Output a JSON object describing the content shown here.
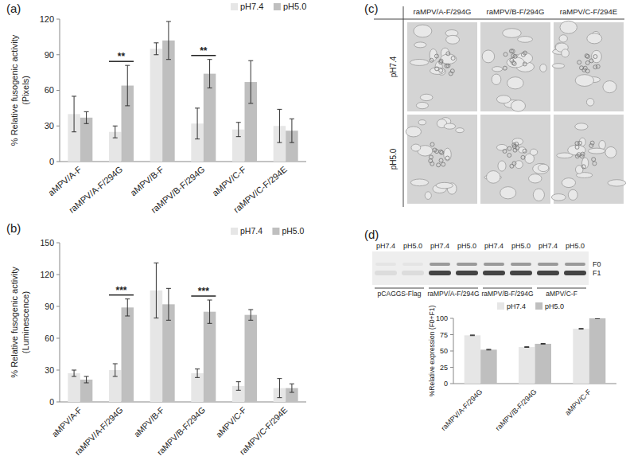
{
  "chart_data": [
    {
      "type": "bar",
      "title": "(a)",
      "ylabel": [
        "% Relative fusogenic activity",
        "(Pixels)"
      ],
      "categories": [
        "aMPV/A-F",
        "raMPV/A-F/294G",
        "aMPV/B-F",
        "raMPV/B-F/294G",
        "aMPV/C-F",
        "raMPV/C-F/294E"
      ],
      "series": [
        {
          "name": "pH7.4",
          "color": "#e6e6e6",
          "values": [
            40,
            25,
            95,
            32,
            27,
            30
          ],
          "error": [
            15,
            5,
            5,
            13,
            6,
            14
          ]
        },
        {
          "name": "pH5.0",
          "color": "#bfbfbf",
          "values": [
            37,
            64,
            102,
            74,
            67,
            26
          ],
          "error": [
            5,
            17,
            16,
            12,
            18,
            10
          ]
        }
      ],
      "ylim": [
        0,
        120
      ],
      "yticks": [
        0,
        30,
        60,
        90,
        120
      ],
      "grid": false,
      "legend": "top",
      "annotations": [
        {
          "index": 1,
          "text": "**"
        },
        {
          "index": 3,
          "text": "**"
        }
      ]
    },
    {
      "type": "bar",
      "title": "(b)",
      "ylabel": [
        "% Relative fusogenic activity",
        "(Luminescence)"
      ],
      "categories": [
        "aMPV/A-F",
        "raMPV/A-F/294G",
        "aMPV/B-F",
        "raMPV/B-F/294G",
        "aMPV/C-F",
        "raMPV/C-F/294E"
      ],
      "series": [
        {
          "name": "pH7.4",
          "color": "#e6e6e6",
          "values": [
            27,
            30,
            105,
            27,
            15,
            13
          ],
          "error": [
            3,
            6,
            26,
            4,
            4,
            9
          ]
        },
        {
          "name": "pH5.0",
          "color": "#bfbfbf",
          "values": [
            21,
            89,
            92,
            85,
            82,
            13
          ],
          "error": [
            3,
            8,
            15,
            11,
            5,
            4
          ]
        }
      ],
      "ylim": [
        0,
        150
      ],
      "yticks": [
        0,
        30,
        60,
        90,
        120,
        150
      ],
      "grid": false,
      "legend": "top",
      "annotations": [
        {
          "index": 1,
          "text": "***"
        },
        {
          "index": 3,
          "text": "***"
        }
      ]
    },
    {
      "type": "bar",
      "title": "(d)",
      "ylabel": [
        "%Relative  expression (F0+F1)"
      ],
      "categories": [
        "raMPV/A-F/294G",
        "raMPV/B-F/294G",
        "aMPV/C-F"
      ],
      "series": [
        {
          "name": "pH7.4",
          "color": "#e6e6e6",
          "values": [
            74,
            56,
            84
          ],
          "error": [
            0.5,
            0.5,
            0.5
          ]
        },
        {
          "name": "pH5.0",
          "color": "#bfbfbf",
          "values": [
            52,
            61,
            100
          ],
          "error": [
            0.5,
            0.5,
            0.5
          ]
        }
      ],
      "ylim": [
        0,
        100
      ],
      "yticks": [
        0,
        25,
        50,
        75,
        100
      ],
      "grid": false,
      "legend": "top"
    }
  ],
  "micrographs": {
    "title": "(c)",
    "columns": [
      "raMPV/A-F/294G",
      "raMPV/B-F/294G",
      "raMPV/C-F/294E"
    ],
    "rows": [
      "pH7.4",
      "pH5.0"
    ]
  },
  "blot": {
    "lane_labels": [
      "pH7.4",
      "pH5.0",
      "pH7.4",
      "pH5.0",
      "pH7.4",
      "pH5.0",
      "pH7.4",
      "pH5.0"
    ],
    "groups": [
      "pCAGGS-Flag",
      "raMPV/A-F/294G",
      "raMPV/B-F/294G",
      "aMPV/C-F"
    ],
    "band_labels": [
      "F0",
      "F1"
    ]
  }
}
